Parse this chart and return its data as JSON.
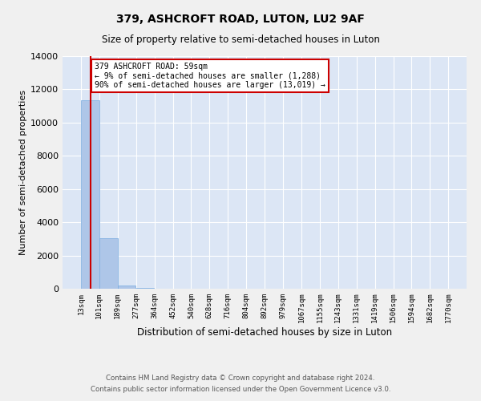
{
  "title": "379, ASHCROFT ROAD, LUTON, LU2 9AF",
  "subtitle": "Size of property relative to semi-detached houses in Luton",
  "xlabel": "Distribution of semi-detached houses by size in Luton",
  "ylabel": "Number of semi-detached properties",
  "property_size": 59,
  "annotation_line1": "379 ASHCROFT ROAD: 59sqm",
  "annotation_line2": "← 9% of semi-detached houses are smaller (1,288)",
  "annotation_line3": "90% of semi-detached houses are larger (13,019) →",
  "footer_line1": "Contains HM Land Registry data © Crown copyright and database right 2024.",
  "footer_line2": "Contains public sector information licensed under the Open Government Licence v3.0.",
  "bar_color": "#aec6e8",
  "bar_edgecolor": "#7aace0",
  "redline_color": "#cc0000",
  "annotation_box_edgecolor": "#cc0000",
  "background_color": "#dce6f5",
  "fig_background": "#f0f0f0",
  "grid_color": "#ffffff",
  "ylim": [
    0,
    14000
  ],
  "yticks": [
    0,
    2000,
    4000,
    6000,
    8000,
    10000,
    12000,
    14000
  ],
  "bin_labels": [
    "13sqm",
    "101sqm",
    "189sqm",
    "277sqm",
    "364sqm",
    "452sqm",
    "540sqm",
    "628sqm",
    "716sqm",
    "804sqm",
    "892sqm",
    "979sqm",
    "1067sqm",
    "1155sqm",
    "1243sqm",
    "1331sqm",
    "1419sqm",
    "1506sqm",
    "1594sqm",
    "1682sqm",
    "1770sqm"
  ],
  "bar_heights": [
    11350,
    3030,
    200,
    30,
    10,
    5,
    3,
    2,
    1,
    1,
    1,
    1,
    0,
    0,
    0,
    0,
    0,
    0,
    0,
    0
  ],
  "num_bins": 20,
  "bin_width": 88
}
